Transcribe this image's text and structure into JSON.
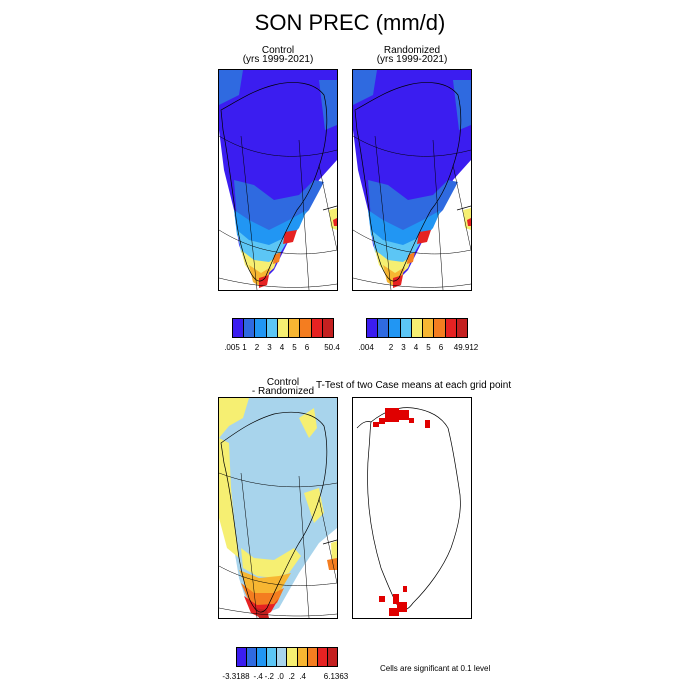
{
  "title": "SON PREC (mm/d)",
  "panels": {
    "control": {
      "title_line1": "Control",
      "title_line2": "(yrs 1999-2021)"
    },
    "randomized": {
      "title_line1": "Randomized",
      "title_line2": "(yrs 1999-2021)"
    },
    "difference": {
      "title_line1": "Control",
      "title_line2": "- Randomized"
    },
    "ttest": {
      "title": "T-Test of two Case means at each grid point"
    }
  },
  "colorbars": {
    "control": {
      "colors": [
        "#3b1df0",
        "#2f6ae0",
        "#2196f3",
        "#5cc6f5",
        "#f6ef72",
        "#f7b632",
        "#f47d20",
        "#e62222",
        "#c42020"
      ],
      "labels": [
        ".005",
        "1",
        "2",
        "3",
        "4",
        "5",
        "6",
        "",
        "50.4"
      ]
    },
    "randomized": {
      "colors": [
        "#3b1df0",
        "#2f6ae0",
        "#2196f3",
        "#5cc6f5",
        "#f6ef72",
        "#f7b632",
        "#f47d20",
        "#e62222",
        "#c42020"
      ],
      "labels": [
        ".004",
        "",
        "2",
        "3",
        "4",
        "5",
        "6",
        "",
        "49.912"
      ]
    },
    "difference": {
      "colors": [
        "#3b1df0",
        "#2f6ae0",
        "#2196f3",
        "#5cc6f5",
        "#a8d4ec",
        "#f6ef72",
        "#f7b632",
        "#f47d20",
        "#e62222",
        "#c42020"
      ],
      "labels": [
        "-3.3188",
        "",
        "-.4",
        "-.2",
        ".0",
        ".2",
        ".4",
        "",
        "6.1363"
      ]
    }
  },
  "footnote": "Cells are significant at 0.1 level"
}
